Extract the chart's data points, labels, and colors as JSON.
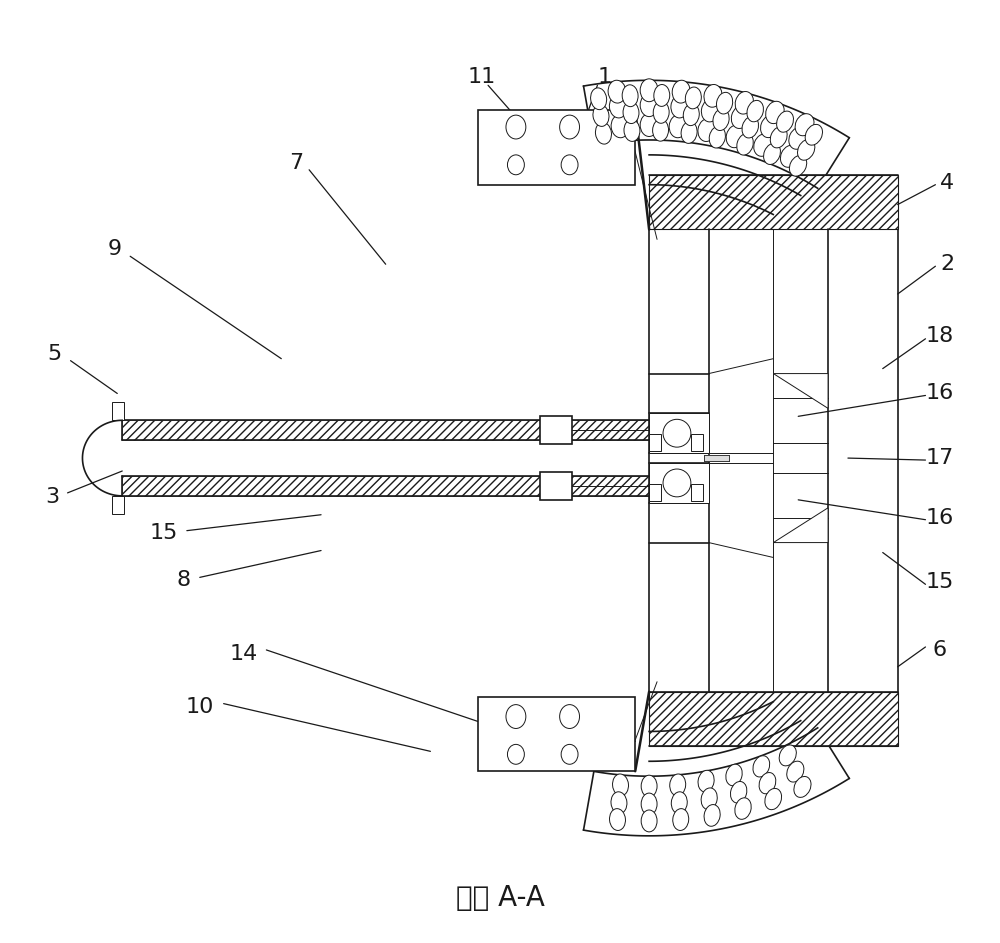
{
  "title": "截面 A-A",
  "title_fontsize": 20,
  "background_color": "#ffffff",
  "line_color": "#1a1a1a",
  "label_color": "#1a1a1a",
  "label_fontsize": 16,
  "figsize": [
    10.0,
    9.43
  ]
}
